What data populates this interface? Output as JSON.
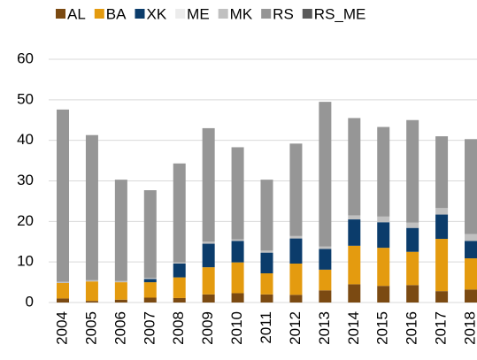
{
  "chart_data": {
    "type": "stacked_bar",
    "categories": [
      "2004",
      "2005",
      "2006",
      "2007",
      "2008",
      "2009",
      "2010",
      "2011",
      "2012",
      "2013",
      "2014",
      "2015",
      "2016",
      "2017",
      "2018"
    ],
    "series": [
      {
        "name": "AL",
        "color": "#7b4a12",
        "values": [
          1,
          0.4,
          0.7,
          1.2,
          1.1,
          2,
          2.3,
          2,
          1.9,
          3,
          4.5,
          4.1,
          4.3,
          2.8,
          3.2
        ]
      },
      {
        "name": "BA",
        "color": "#e49b0f",
        "values": [
          3.8,
          4.8,
          4.3,
          3.8,
          5.1,
          6.7,
          7.6,
          5.2,
          7.7,
          5.1,
          9.5,
          9.4,
          8.2,
          12.9,
          7.7
        ]
      },
      {
        "name": "XK",
        "color": "#0b3c6b",
        "values": [
          0,
          0,
          0,
          0.8,
          3.4,
          5.8,
          5.3,
          5.1,
          6.2,
          5.1,
          6.5,
          6.3,
          5.9,
          6,
          4.3
        ]
      },
      {
        "name": "ME",
        "color": "#ececec",
        "values": [
          0,
          0,
          0,
          0,
          0,
          0,
          0,
          0,
          0,
          0,
          0,
          0,
          0,
          0,
          0
        ]
      },
      {
        "name": "MK",
        "color": "#c0c0c0",
        "values": [
          0.3,
          0.3,
          0.3,
          0.3,
          0.3,
          0.5,
          0.4,
          0.5,
          0.6,
          0.6,
          1,
          1.4,
          1.3,
          1.6,
          1.7
        ]
      },
      {
        "name": "RS",
        "color": "#969696",
        "values": [
          42.5,
          35.8,
          25,
          21.6,
          24.4,
          28,
          22.7,
          17.5,
          22.8,
          35.7,
          24,
          22.1,
          25.3,
          17.7,
          23.4
        ]
      },
      {
        "name": "RS_ME",
        "color": "#5a5a5a",
        "values": [
          0,
          0,
          0,
          0,
          0,
          0,
          0,
          0,
          0,
          0,
          0,
          0,
          0,
          0,
          0
        ]
      }
    ],
    "ylim": [
      0,
      60
    ],
    "yticks": [
      0,
      10,
      20,
      30,
      40,
      50,
      60
    ],
    "grid": true,
    "legend": "top"
  }
}
